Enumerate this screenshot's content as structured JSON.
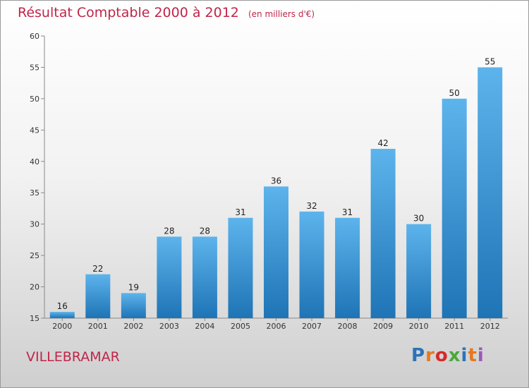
{
  "title": "Résultat Comptable 2000 à 2012",
  "subtitle": "(en milliers d'€)",
  "commune": "VILLEBRAMAR",
  "logo": {
    "text": "Proxiti",
    "colors": [
      "#2b73b8",
      "#e8781e",
      "#d42a2a",
      "#4aa83b",
      "#2b73b8",
      "#e8781e",
      "#9b59b6"
    ]
  },
  "colors": {
    "title": "#c0254a",
    "bar_top": "#5db4ec",
    "bar_bottom": "#1e74b5"
  },
  "chart_data": {
    "type": "bar",
    "title": "Résultat Comptable 2000 à 2012",
    "subtitle": "(en milliers d'€)",
    "xlabel": "",
    "ylabel": "",
    "categories": [
      "2000",
      "2001",
      "2002",
      "2003",
      "2004",
      "2005",
      "2006",
      "2007",
      "2008",
      "2009",
      "2010",
      "2011",
      "2012"
    ],
    "values": [
      16,
      22,
      19,
      28,
      28,
      31,
      36,
      32,
      31,
      42,
      30,
      50,
      55
    ],
    "ylim": [
      15,
      60
    ],
    "yticks": [
      15,
      20,
      25,
      30,
      35,
      40,
      45,
      50,
      55,
      60
    ],
    "grid": false
  }
}
